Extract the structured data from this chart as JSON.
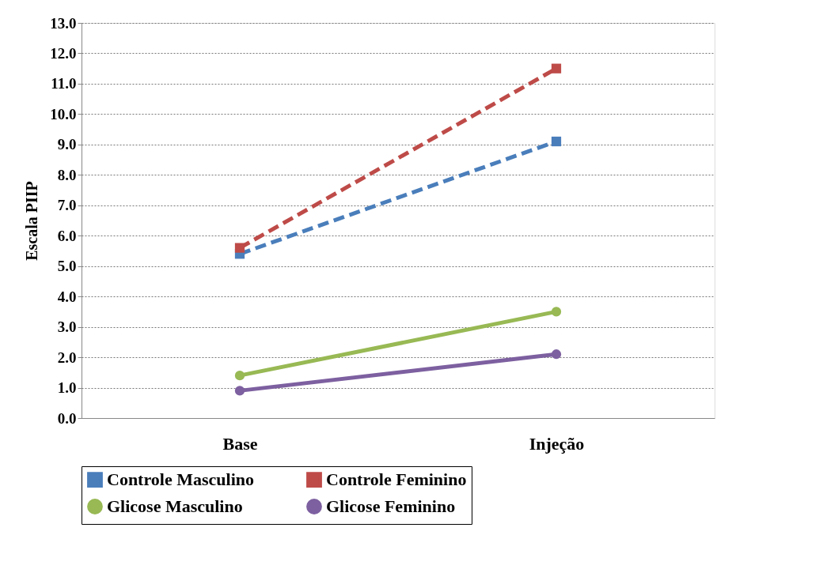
{
  "chart_data": {
    "type": "line",
    "ylabel": "Escala PIIP",
    "categories": [
      "Base",
      "Injeção"
    ],
    "series": [
      {
        "name": "Controle Masculino",
        "color": "#4a7ebb",
        "values": [
          5.4,
          9.1
        ],
        "marker": "square",
        "line_style": "dashed"
      },
      {
        "name": "Controle Feminino",
        "color": "#be4b48",
        "values": [
          5.6,
          11.5
        ],
        "marker": "square",
        "line_style": "dashed"
      },
      {
        "name": "Glicose Masculino",
        "color": "#98b954",
        "values": [
          1.4,
          3.5
        ],
        "marker": "circle",
        "line_style": "solid"
      },
      {
        "name": "Glicose Feminino",
        "color": "#7d60a0",
        "values": [
          0.9,
          2.1
        ],
        "marker": "circle",
        "line_style": "solid"
      }
    ],
    "ylim": [
      0,
      13
    ],
    "yticks": [
      {
        "value": 0,
        "label": "0.0"
      },
      {
        "value": 1,
        "label": "1.0"
      },
      {
        "value": 2,
        "label": "2.0"
      },
      {
        "value": 3,
        "label": "3.0"
      },
      {
        "value": 4,
        "label": "4.0"
      },
      {
        "value": 5,
        "label": "5.0"
      },
      {
        "value": 6,
        "label": "6.0"
      },
      {
        "value": 7,
        "label": "7.0"
      },
      {
        "value": 8,
        "label": "8.0"
      },
      {
        "value": 9,
        "label": "9.0"
      },
      {
        "value": 10,
        "label": "10.0"
      },
      {
        "value": 11,
        "label": "11.0"
      },
      {
        "value": 12,
        "label": "12.0"
      },
      {
        "value": 13,
        "label": "13.0"
      }
    ],
    "grid": "y",
    "legend": "bottom"
  }
}
